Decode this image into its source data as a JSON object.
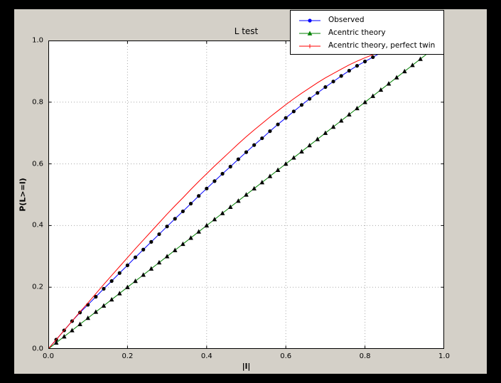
{
  "colors": {
    "outer_background": "#000000",
    "figure_background": "#d4d0c8",
    "axes_background": "#ffffff",
    "grid": "#a8a8a8"
  },
  "chart_data": {
    "type": "line",
    "title": "L test",
    "xlabel": "|l|",
    "ylabel": "P(L>=l)",
    "xlim": [
      0.0,
      1.0
    ],
    "ylim": [
      0.0,
      1.0
    ],
    "grid": "dotted",
    "xticks": [
      "0.0",
      "0.2",
      "0.4",
      "0.6",
      "0.8",
      "1.0"
    ],
    "yticks": [
      "0.0",
      "0.2",
      "0.4",
      "0.6",
      "0.8",
      "1.0"
    ],
    "legend": {
      "position": "upper-right",
      "entries": [
        "Observed",
        "Acentric theory",
        "Acentric theory, perfect twin"
      ]
    },
    "series": [
      {
        "name": "Observed",
        "color": "#0000ff",
        "marker": "circle",
        "x": [
          0,
          0.02,
          0.04,
          0.06,
          0.08,
          0.1,
          0.12,
          0.14,
          0.16,
          0.18,
          0.2,
          0.22,
          0.24,
          0.26,
          0.28,
          0.3,
          0.32,
          0.34,
          0.36,
          0.38,
          0.4,
          0.42,
          0.44,
          0.46,
          0.48,
          0.5,
          0.52,
          0.54,
          0.56,
          0.58,
          0.6,
          0.62,
          0.64,
          0.66,
          0.68,
          0.7,
          0.72,
          0.74,
          0.76,
          0.78,
          0.8,
          0.82,
          0.84,
          0.86
        ],
        "y": [
          0,
          0.03,
          0.06,
          0.09,
          0.118,
          0.143,
          0.169,
          0.195,
          0.22,
          0.246,
          0.271,
          0.297,
          0.322,
          0.347,
          0.372,
          0.397,
          0.422,
          0.446,
          0.471,
          0.496,
          0.52,
          0.544,
          0.568,
          0.591,
          0.615,
          0.638,
          0.661,
          0.683,
          0.706,
          0.728,
          0.749,
          0.77,
          0.791,
          0.811,
          0.83,
          0.849,
          0.867,
          0.885,
          0.902,
          0.918,
          0.932,
          0.946,
          0.96,
          0.972
        ]
      },
      {
        "name": "Acentric theory",
        "color": "#008000",
        "marker": "triangle-up",
        "x": [
          0,
          0.02,
          0.04,
          0.06,
          0.08,
          0.1,
          0.12,
          0.14,
          0.16,
          0.18,
          0.2,
          0.22,
          0.24,
          0.26,
          0.28,
          0.3,
          0.32,
          0.34,
          0.36,
          0.38,
          0.4,
          0.42,
          0.44,
          0.46,
          0.48,
          0.5,
          0.52,
          0.54,
          0.56,
          0.58,
          0.6,
          0.62,
          0.64,
          0.66,
          0.68,
          0.7,
          0.72,
          0.74,
          0.76,
          0.78,
          0.8,
          0.82,
          0.84,
          0.86,
          0.88,
          0.9,
          0.92,
          0.94,
          0.96
        ],
        "y": [
          0,
          0.02,
          0.04,
          0.06,
          0.08,
          0.1,
          0.12,
          0.14,
          0.16,
          0.18,
          0.2,
          0.22,
          0.24,
          0.26,
          0.28,
          0.3,
          0.32,
          0.34,
          0.36,
          0.38,
          0.4,
          0.42,
          0.44,
          0.46,
          0.48,
          0.5,
          0.52,
          0.54,
          0.56,
          0.58,
          0.6,
          0.62,
          0.64,
          0.66,
          0.68,
          0.7,
          0.72,
          0.74,
          0.76,
          0.78,
          0.8,
          0.82,
          0.84,
          0.86,
          0.88,
          0.9,
          0.92,
          0.94,
          0.96
        ]
      },
      {
        "name": "Acentric theory, perfect twin",
        "color": "#ff0000",
        "marker": "plus",
        "x": [
          0,
          0.02,
          0.04,
          0.06,
          0.08,
          0.1,
          0.12,
          0.14,
          0.16,
          0.18,
          0.2,
          0.22,
          0.24,
          0.26,
          0.28,
          0.3,
          0.32,
          0.34,
          0.36,
          0.38,
          0.4,
          0.42,
          0.44,
          0.46,
          0.48,
          0.5,
          0.52,
          0.54,
          0.56,
          0.58,
          0.6,
          0.62,
          0.64,
          0.66,
          0.68,
          0.7,
          0.72,
          0.74,
          0.76,
          0.78,
          0.8,
          0.82,
          0.84,
          0.86
        ],
        "y": [
          0,
          0.03,
          0.06,
          0.09,
          0.12,
          0.149,
          0.179,
          0.209,
          0.238,
          0.267,
          0.296,
          0.325,
          0.353,
          0.381,
          0.409,
          0.437,
          0.464,
          0.49,
          0.517,
          0.543,
          0.568,
          0.593,
          0.617,
          0.641,
          0.665,
          0.688,
          0.71,
          0.731,
          0.752,
          0.772,
          0.792,
          0.811,
          0.829,
          0.846,
          0.863,
          0.879,
          0.893,
          0.907,
          0.921,
          0.933,
          0.944,
          0.954,
          0.964,
          0.972
        ]
      }
    ]
  }
}
